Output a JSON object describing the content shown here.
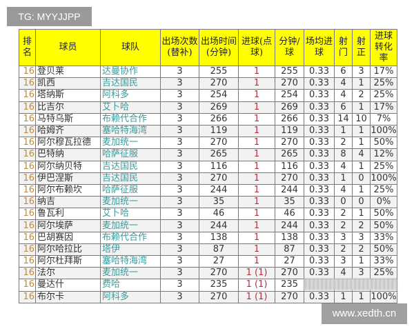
{
  "watermarks": {
    "top": "TG: MYYJJPP",
    "bottom": "www.xedth.cn"
  },
  "headers": [
    "排名",
    "球员",
    "球队",
    "出场次数(替补)",
    "出场时间(分钟)",
    "进球(点球)",
    "分钟/球",
    "场均进球",
    "射门",
    "射正",
    "进球转化率"
  ],
  "rows": [
    [
      "16",
      "登贝莱",
      "达曼协作",
      "3",
      "255",
      "1",
      "255",
      "0.33",
      "6",
      "3",
      "17%"
    ],
    [
      "16",
      "凯西",
      "吉达国民",
      "3",
      "270",
      "1",
      "270",
      "0.33",
      "4",
      "1",
      "25%"
    ],
    [
      "16",
      "塔纳斯",
      "阿科多",
      "3",
      "254",
      "1",
      "254",
      "0.33",
      "4",
      "2",
      "25%"
    ],
    [
      "16",
      "比吉尔",
      "艾卜哈",
      "3",
      "269",
      "1",
      "269",
      "0.33",
      "6",
      "1",
      "17%"
    ],
    [
      "16",
      "马特乌斯",
      "布赖代合作",
      "3",
      "266",
      "1",
      "266",
      "0.33",
      "14",
      "10",
      "7%"
    ],
    [
      "16",
      "哈姆齐",
      "塞哈特海湾",
      "3",
      "119",
      "1",
      "119",
      "0.33",
      "1",
      "1",
      "100%"
    ],
    [
      "16",
      "阿尔穆瓦拉德",
      "麦加统一",
      "3",
      "270",
      "1",
      "270",
      "0.33",
      "2",
      "1",
      "50%"
    ],
    [
      "16",
      "巴特纳",
      "哈萨征服",
      "3",
      "265",
      "1",
      "265",
      "0.33",
      "8",
      "4",
      "12%"
    ],
    [
      "16",
      "阿尔纳贝特",
      "吉达国民",
      "3",
      "116",
      "1",
      "116",
      "0.33",
      "4",
      "1",
      "25%"
    ],
    [
      "16",
      "伊巴涅斯",
      "吉达国民",
      "3",
      "270",
      "1",
      "270",
      "0.33",
      "1",
      "0",
      "100%"
    ],
    [
      "16",
      "阿尔布赖坎",
      "哈萨征服",
      "3",
      "244",
      "1",
      "244",
      "0.33",
      "4",
      "1",
      "25%"
    ],
    [
      "16",
      "纳吉",
      "麦加统一",
      "3",
      "35",
      "1",
      "35",
      "0.33",
      "0",
      "0",
      "0%"
    ],
    [
      "16",
      "鲁瓦利",
      "艾卜哈",
      "3",
      "46",
      "1",
      "46",
      "0.33",
      "2",
      "1",
      "50%"
    ],
    [
      "16",
      "阿尔埃萨",
      "麦加统一",
      "3",
      "244",
      "1",
      "244",
      "0.33",
      "2",
      "2",
      "50%"
    ],
    [
      "16",
      "巴胡赛因",
      "布赖代合作",
      "3",
      "138",
      "1",
      "138",
      "0.33",
      "3",
      "3",
      "33%"
    ],
    [
      "16",
      "阿尔哈拉比",
      "塔伊",
      "3",
      "87",
      "1",
      "87",
      "0.33",
      "2",
      "2",
      "50%"
    ],
    [
      "16",
      "阿尔杜拜斯",
      "塞哈特海湾",
      "3",
      "27",
      "1",
      "27",
      "0.33",
      "3",
      "1",
      "33%"
    ],
    [
      "16",
      "法尔",
      "麦加统一",
      "3",
      "270",
      "1 (1)",
      "270",
      "0.33",
      "4",
      "3",
      "25%"
    ],
    [
      "16",
      "曼达什",
      "费哈",
      "3",
      "235",
      "1 (1)",
      "235",
      "",
      "",
      "",
      ""
    ],
    [
      "16",
      "布尔卡",
      "阿科多",
      "3",
      "270",
      "1 (1)",
      "270",
      "0.33",
      "1",
      "1",
      "100%"
    ]
  ]
}
